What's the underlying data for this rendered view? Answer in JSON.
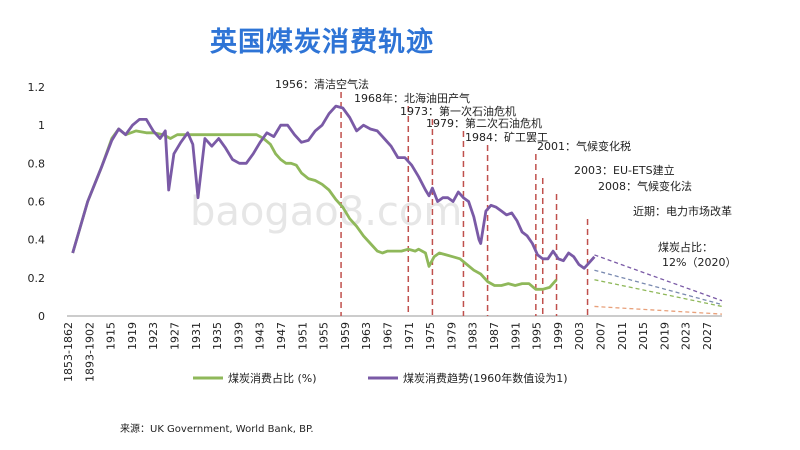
{
  "title": "英国煤炭消费轨迹",
  "source": "来源：UK Government, World Bank, BP.",
  "watermark": "baogao8.com",
  "chart_data": {
    "type": "line",
    "ylim": [
      0,
      1.2
    ],
    "yticks": [
      "0",
      "0.2",
      "0.4",
      "0.6",
      "0.8",
      "1",
      "1.2"
    ],
    "xticks": [
      "1853-1862",
      "1893-1902",
      "1915",
      "1919",
      "1923",
      "1927",
      "1931",
      "1935",
      "1939",
      "1943",
      "1947",
      "1951",
      "1955",
      "1959",
      "1963",
      "1967",
      "1971",
      "1975",
      "1979",
      "1983",
      "1987",
      "1991",
      "1995",
      "1999",
      "2003",
      "2007",
      "2011",
      "2015",
      "2019",
      "2023",
      "2027"
    ],
    "series": [
      {
        "name": "煤炭消费占比 (%)",
        "color": "#8fb85a",
        "values": [
          [
            0.33,
            0.33
          ],
          [
            1.2,
            0.6
          ],
          [
            2.0,
            0.78
          ],
          [
            2.6,
            0.93
          ],
          [
            3.0,
            0.98
          ],
          [
            3.4,
            0.95
          ],
          [
            4.0,
            0.97
          ],
          [
            4.6,
            0.96
          ],
          [
            5.0,
            0.96
          ],
          [
            5.6,
            0.95
          ],
          [
            6.0,
            0.93
          ],
          [
            6.4,
            0.95
          ],
          [
            7.0,
            0.95
          ],
          [
            8.0,
            0.95
          ],
          [
            9.0,
            0.95
          ],
          [
            10.0,
            0.95
          ],
          [
            11.0,
            0.95
          ],
          [
            11.4,
            0.93
          ],
          [
            11.8,
            0.9
          ],
          [
            12.1,
            0.85
          ],
          [
            12.4,
            0.82
          ],
          [
            12.7,
            0.8
          ],
          [
            13.0,
            0.8
          ],
          [
            13.3,
            0.79
          ],
          [
            13.6,
            0.75
          ],
          [
            14.0,
            0.72
          ],
          [
            14.4,
            0.71
          ],
          [
            14.8,
            0.69
          ],
          [
            15.2,
            0.66
          ],
          [
            15.6,
            0.61
          ],
          [
            16.0,
            0.57
          ],
          [
            16.4,
            0.51
          ],
          [
            16.8,
            0.47
          ],
          [
            17.2,
            0.42
          ],
          [
            17.6,
            0.38
          ],
          [
            18.0,
            0.34
          ],
          [
            18.3,
            0.33
          ],
          [
            18.6,
            0.34
          ],
          [
            19.0,
            0.34
          ],
          [
            19.4,
            0.34
          ],
          [
            19.8,
            0.35
          ],
          [
            20.2,
            0.34
          ],
          [
            20.4,
            0.35
          ],
          [
            20.6,
            0.34
          ],
          [
            20.8,
            0.33
          ],
          [
            21.0,
            0.26
          ],
          [
            21.3,
            0.31
          ],
          [
            21.6,
            0.33
          ],
          [
            22.0,
            0.32
          ],
          [
            22.4,
            0.31
          ],
          [
            22.8,
            0.3
          ],
          [
            23.2,
            0.27
          ],
          [
            23.6,
            0.24
          ],
          [
            24.0,
            0.22
          ],
          [
            24.4,
            0.18
          ],
          [
            24.8,
            0.16
          ],
          [
            25.2,
            0.16
          ],
          [
            25.6,
            0.17
          ],
          [
            26.0,
            0.16
          ],
          [
            26.4,
            0.17
          ],
          [
            26.8,
            0.17
          ],
          [
            27.2,
            0.14
          ],
          [
            27.6,
            0.14
          ],
          [
            28.0,
            0.15
          ],
          [
            28.4,
            0.19
          ]
        ]
      },
      {
        "name": "煤炭消费趋势(1960年数值设为1)",
        "color": "#7a5aa6",
        "values": [
          [
            0.33,
            0.33
          ],
          [
            1.2,
            0.6
          ],
          [
            2.0,
            0.78
          ],
          [
            2.6,
            0.92
          ],
          [
            3.0,
            0.98
          ],
          [
            3.4,
            0.95
          ],
          [
            3.8,
            1.0
          ],
          [
            4.2,
            1.03
          ],
          [
            4.6,
            1.03
          ],
          [
            5.0,
            0.97
          ],
          [
            5.4,
            0.93
          ],
          [
            5.7,
            0.97
          ],
          [
            5.9,
            0.66
          ],
          [
            6.2,
            0.85
          ],
          [
            6.6,
            0.91
          ],
          [
            7.0,
            0.96
          ],
          [
            7.3,
            0.9
          ],
          [
            7.6,
            0.62
          ],
          [
            8.0,
            0.93
          ],
          [
            8.4,
            0.89
          ],
          [
            8.8,
            0.93
          ],
          [
            9.2,
            0.88
          ],
          [
            9.6,
            0.82
          ],
          [
            10.0,
            0.8
          ],
          [
            10.4,
            0.8
          ],
          [
            10.8,
            0.85
          ],
          [
            11.2,
            0.91
          ],
          [
            11.6,
            0.96
          ],
          [
            12.0,
            0.94
          ],
          [
            12.4,
            1.0
          ],
          [
            12.8,
            1.0
          ],
          [
            13.2,
            0.95
          ],
          [
            13.6,
            0.91
          ],
          [
            14.0,
            0.92
          ],
          [
            14.4,
            0.97
          ],
          [
            14.8,
            1.0
          ],
          [
            15.2,
            1.06
          ],
          [
            15.6,
            1.1
          ],
          [
            16.0,
            1.09
          ],
          [
            16.4,
            1.04
          ],
          [
            16.8,
            0.97
          ],
          [
            17.2,
            1.0
          ],
          [
            17.6,
            0.98
          ],
          [
            18.0,
            0.97
          ],
          [
            18.4,
            0.93
          ],
          [
            18.8,
            0.89
          ],
          [
            19.2,
            0.83
          ],
          [
            19.6,
            0.83
          ],
          [
            20.0,
            0.79
          ],
          [
            20.4,
            0.73
          ],
          [
            20.8,
            0.66
          ],
          [
            21.0,
            0.63
          ],
          [
            21.2,
            0.67
          ],
          [
            21.5,
            0.6
          ],
          [
            21.8,
            0.62
          ],
          [
            22.1,
            0.62
          ],
          [
            22.4,
            0.6
          ],
          [
            22.7,
            0.65
          ],
          [
            23.0,
            0.62
          ],
          [
            23.3,
            0.6
          ],
          [
            23.6,
            0.52
          ],
          [
            23.9,
            0.4
          ],
          [
            24.0,
            0.38
          ],
          [
            24.3,
            0.55
          ],
          [
            24.6,
            0.58
          ],
          [
            24.9,
            0.57
          ],
          [
            25.2,
            0.55
          ],
          [
            25.5,
            0.53
          ],
          [
            25.8,
            0.54
          ],
          [
            26.1,
            0.5
          ],
          [
            26.4,
            0.44
          ],
          [
            26.7,
            0.42
          ],
          [
            27.0,
            0.38
          ],
          [
            27.3,
            0.32
          ],
          [
            27.6,
            0.3
          ],
          [
            27.9,
            0.3
          ],
          [
            28.2,
            0.34
          ],
          [
            28.5,
            0.3
          ],
          [
            28.8,
            0.29
          ],
          [
            29.1,
            0.33
          ],
          [
            29.4,
            0.31
          ],
          [
            29.7,
            0.27
          ],
          [
            30.0,
            0.25
          ],
          [
            30.3,
            0.28
          ],
          [
            30.6,
            0.31
          ]
        ]
      }
    ],
    "projections": [
      {
        "color": "#7a5aa6",
        "from": [
          30.6,
          0.32
        ],
        "to": [
          38.0,
          0.08
        ]
      },
      {
        "color": "#7a8ab0",
        "from": [
          30.6,
          0.24
        ],
        "to": [
          38.0,
          0.06
        ]
      },
      {
        "color": "#8fb85a",
        "from": [
          30.6,
          0.19
        ],
        "to": [
          38.0,
          0.05
        ]
      },
      {
        "color": "#e8a07a",
        "from": [
          30.6,
          0.05
        ],
        "to": [
          38.0,
          0.01
        ]
      }
    ],
    "events": [
      {
        "label": "1956：清洁空气法",
        "at": 15.9
      },
      {
        "label": "1968年：北海油田产气",
        "at": 19.8
      },
      {
        "label": "1973：第一次石油危机",
        "at": 21.2
      },
      {
        "label": "1979：第二次石油危机",
        "at": 23.0
      },
      {
        "label": "1984：矿工罢工",
        "at": 24.4
      },
      {
        "label": "2001：气候变化税",
        "at": 27.2
      },
      {
        "label": "2003：EU-ETS建立",
        "at": 27.6
      },
      {
        "label": "2008：气候变化法",
        "at": 28.4
      },
      {
        "label": "近期：电力市场改革",
        "at": 30.2
      }
    ],
    "callout": "煤炭占比：\n12%（2020）"
  }
}
